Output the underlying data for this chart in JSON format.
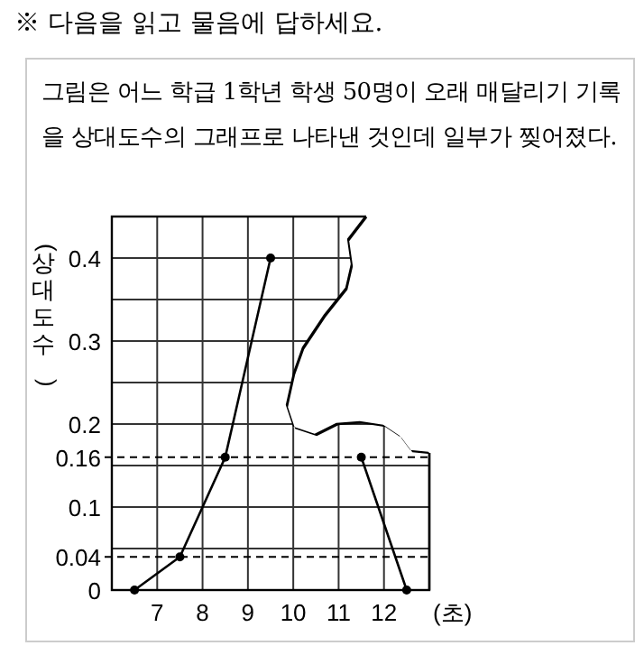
{
  "chart_data": {
    "type": "line",
    "title": "※ 다음을 읽고 물음에 답하세요.",
    "subtitle": "그림은 어느 학급 1학년 학생 50명이 오래 매달리기 기록을 상대도수의 그래프로 나타낸 것인데 일부가 찢어졌다.",
    "ylabel": "(상대도수)",
    "xlabel": "(초)",
    "x": [
      6.5,
      7.5,
      8.5,
      9.5,
      10.5,
      11.5,
      12.5
    ],
    "series": [
      {
        "color": "#000000",
        "values": [
          0,
          0.04,
          0.16,
          0.4,
          null,
          0.16,
          0
        ]
      }
    ],
    "xlim": [
      6,
      13
    ],
    "xticks": [
      7,
      8,
      9,
      10,
      11,
      12
    ],
    "ylim": [
      0,
      0.45
    ],
    "yticks": [
      0,
      {
        "value": 0.05,
        "label": null
      },
      0.1,
      {
        "value": 0.15,
        "label": null
      },
      0.2,
      {
        "value": 0.25,
        "label": null
      },
      0.3,
      {
        "value": 0.35,
        "label": null
      },
      0.4,
      {
        "value": 0.45,
        "label": null
      }
    ],
    "ref_lines": [
      {
        "axis": "y",
        "value": 0.04,
        "label": "0.04",
        "line_style": "dashed"
      },
      {
        "axis": "y",
        "value": 0.16,
        "label": "0.16",
        "line_style": "dashed"
      }
    ],
    "grid": true,
    "marker": "circle"
  }
}
